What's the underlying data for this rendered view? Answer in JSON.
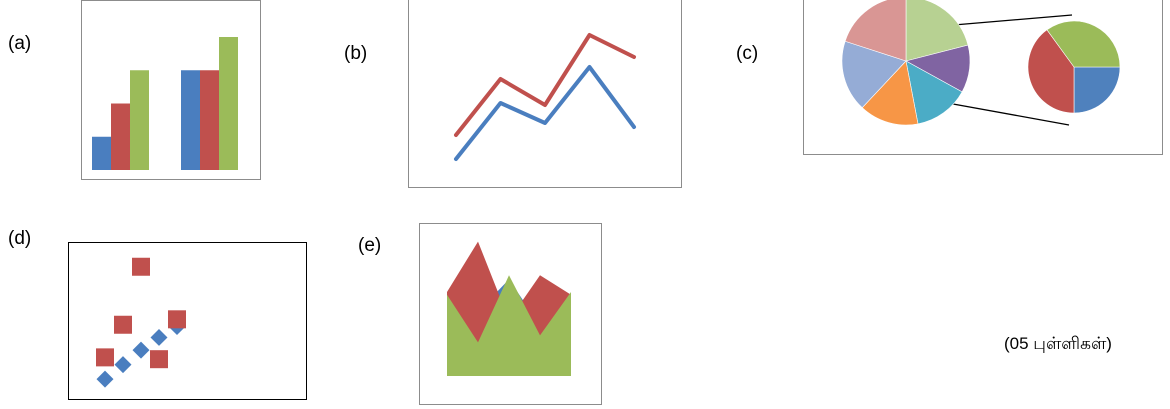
{
  "labels": {
    "a": "(a)",
    "b": "(b)",
    "c": "(c)",
    "d": "(d)",
    "e": "(e)"
  },
  "marks_text": "(05 புள்ளிகள்)",
  "colors": {
    "blue": "#4a7ebf",
    "red": "#c0504d",
    "green": "#9bbb59",
    "pie_slices": [
      "#b7d192",
      "#8064a2",
      "#4bacc6",
      "#f79646",
      "#95acd6",
      "#d99694"
    ],
    "secondary_slices": [
      "#4f81bd",
      "#c0504d",
      "#9bbb59"
    ]
  },
  "chart_data": [
    {
      "id": "a",
      "type": "bar",
      "categories": [
        "",
        ""
      ],
      "series": [
        {
          "values": [
            1,
            3
          ]
        },
        {
          "values": [
            2,
            3
          ]
        },
        {
          "values": [
            3,
            4
          ]
        }
      ],
      "ylim": [
        0,
        4
      ]
    },
    {
      "id": "b",
      "type": "line",
      "x": [
        1,
        2,
        3,
        4,
        5
      ],
      "series": [
        {
          "values": [
            1.8,
            4.6,
            3.3,
            6.8,
            5.7
          ]
        },
        {
          "values": [
            0.6,
            3.4,
            2.4,
            5.2,
            2.2
          ]
        }
      ],
      "ylim": [
        0,
        8
      ]
    },
    {
      "id": "c",
      "type": "pie",
      "slices": [
        21,
        12,
        14,
        15,
        18,
        20
      ],
      "secondary_slices": [
        25,
        40,
        35
      ]
    },
    {
      "id": "d",
      "type": "scatter",
      "series": [
        {
          "points": [
            [
              1,
              0.6
            ],
            [
              2,
              1.4
            ],
            [
              3,
              2.2
            ],
            [
              4,
              2.9
            ],
            [
              5,
              3.5
            ]
          ]
        },
        {
          "points": [
            [
              1,
              1.8
            ],
            [
              2,
              3.6
            ],
            [
              3,
              6.8
            ],
            [
              4,
              1.7
            ],
            [
              5,
              3.9
            ]
          ]
        }
      ],
      "xlim": [
        0,
        6
      ],
      "ylim": [
        0,
        8
      ]
    },
    {
      "id": "e",
      "type": "area",
      "x": [
        0,
        1,
        2,
        3,
        4
      ],
      "series": [
        {
          "values": [
            0,
            4.6,
            6.9,
            3.6,
            0
          ]
        },
        {
          "values": [
            6.0,
            9.6,
            4.0,
            7.2,
            5.8
          ]
        },
        {
          "values": [
            5.8,
            2.4,
            7.2,
            2.9,
            6.0
          ]
        }
      ],
      "ylim": [
        0,
        10
      ]
    }
  ]
}
